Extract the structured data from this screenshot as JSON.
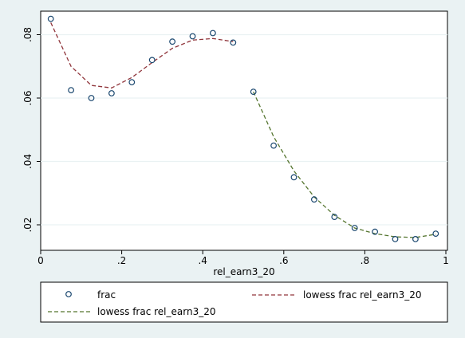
{
  "chart_data": {
    "type": "scatter",
    "title": "",
    "xlabel": "rel_earn3_20",
    "ylabel": "",
    "xlim": [
      0,
      1
    ],
    "ylim": [
      0.0125,
      0.0875
    ],
    "x_ticks": [
      0,
      0.2,
      0.4,
      0.6,
      0.8,
      1
    ],
    "x_tick_labels": [
      "0",
      ".2",
      ".4",
      ".6",
      ".8",
      "1"
    ],
    "y_ticks": [
      0.02,
      0.04,
      0.06,
      0.08
    ],
    "y_tick_labels": [
      ".02",
      ".04",
      ".06",
      ".08"
    ],
    "grid": "horizontal",
    "legend_position": "bottom",
    "series": [
      {
        "name": "frac",
        "kind": "points",
        "color": "#1a476f",
        "x": [
          0.025,
          0.075,
          0.125,
          0.175,
          0.225,
          0.275,
          0.325,
          0.375,
          0.425,
          0.475,
          0.525,
          0.575,
          0.625,
          0.675,
          0.725,
          0.775,
          0.825,
          0.875,
          0.925,
          0.975
        ],
        "y": [
          0.085,
          0.0625,
          0.06,
          0.0615,
          0.065,
          0.072,
          0.0778,
          0.0795,
          0.0805,
          0.0775,
          0.062,
          0.045,
          0.035,
          0.028,
          0.0225,
          0.019,
          0.0178,
          0.0155,
          0.0155,
          0.0172
        ]
      },
      {
        "name": "lowess frac rel_earn3_20",
        "kind": "dashed-line",
        "color": "#90353b",
        "x": [
          0.025,
          0.075,
          0.125,
          0.175,
          0.225,
          0.275,
          0.325,
          0.375,
          0.425,
          0.475
        ],
        "y": [
          0.0838,
          0.07,
          0.064,
          0.0632,
          0.0665,
          0.0712,
          0.0757,
          0.0783,
          0.0788,
          0.0778
        ]
      },
      {
        "name": "lowess frac rel_earn3_20",
        "kind": "dashed-line",
        "color": "#55752f",
        "x": [
          0.525,
          0.575,
          0.625,
          0.675,
          0.725,
          0.775,
          0.825,
          0.875,
          0.925,
          0.975
        ],
        "y": [
          0.062,
          0.0478,
          0.037,
          0.0288,
          0.023,
          0.019,
          0.0172,
          0.0162,
          0.016,
          0.017
        ]
      }
    ]
  },
  "legend": {
    "items": [
      "frac",
      "lowess frac rel_earn3_20",
      "lowess frac rel_earn3_20"
    ]
  }
}
